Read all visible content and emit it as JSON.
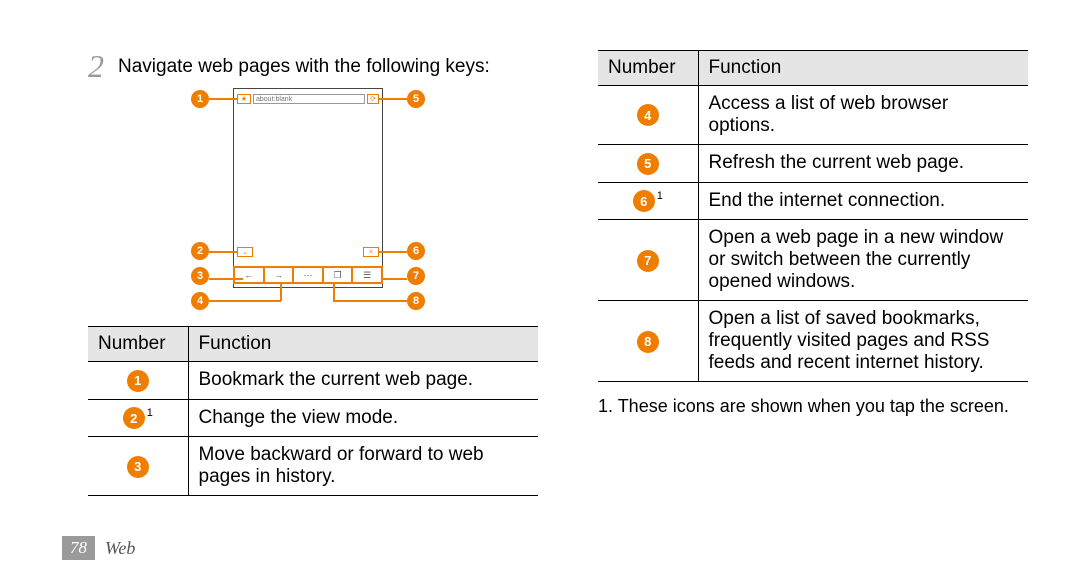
{
  "step": {
    "number": "2",
    "text": "Navigate web pages with the following keys:"
  },
  "diagram": {
    "address_text": "about:blank",
    "callouts_left": [
      "1",
      "2",
      "3",
      "4"
    ],
    "callouts_right": [
      "5",
      "6",
      "7",
      "8"
    ]
  },
  "table_left": {
    "headers": [
      "Number",
      "Function"
    ],
    "rows": [
      {
        "num": "1",
        "sup": "",
        "text": "Bookmark the current web page."
      },
      {
        "num": "2",
        "sup": "1",
        "text": "Change the view mode."
      },
      {
        "num": "3",
        "sup": "",
        "text": "Move backward or forward to web pages in history."
      }
    ]
  },
  "table_right": {
    "headers": [
      "Number",
      "Function"
    ],
    "rows": [
      {
        "num": "4",
        "sup": "",
        "text": "Access a list of web browser options."
      },
      {
        "num": "5",
        "sup": "",
        "text": "Refresh the current web page."
      },
      {
        "num": "6",
        "sup": "1",
        "text": "End the internet connection."
      },
      {
        "num": "7",
        "sup": "",
        "text": "Open a web page in a new window or switch between the currently opened windows."
      },
      {
        "num": "8",
        "sup": "",
        "text": "Open a list of saved bookmarks, frequently visited pages and RSS feeds and recent internet history."
      }
    ]
  },
  "footnote": "1. These icons are shown when you tap the screen.",
  "footer": {
    "page": "78",
    "section": "Web"
  },
  "colors": {
    "accent": "#ef7d00",
    "header_bg": "#e5e5e5",
    "border": "#000000",
    "footer_box": "#9a9a9a"
  }
}
